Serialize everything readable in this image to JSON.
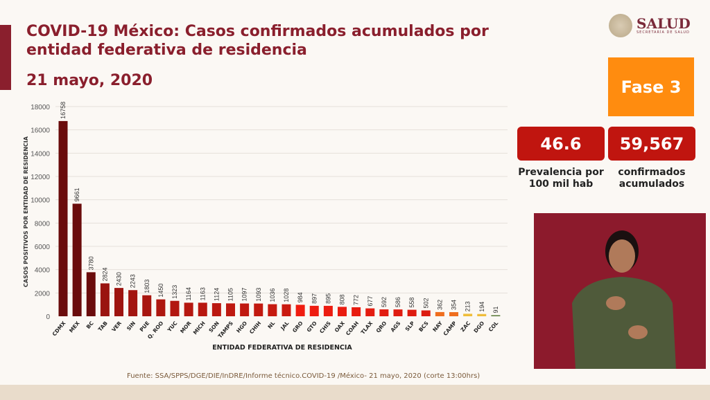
{
  "header": {
    "title": "COVID-19 México: Casos confirmados acumulados por entidad federativa de residencia",
    "date": "21 mayo, 2020"
  },
  "logo": {
    "name": "SALUD",
    "subtitle": "SECRETARÍA DE SALUD"
  },
  "stats": {
    "phase": "Fase 3",
    "prevalence_value": "46.6",
    "prevalence_label": "Prevalencia por 100 mil hab",
    "confirmed_value": "59,567",
    "confirmed_label": "confirmados acumulados"
  },
  "footer": {
    "source": "Fuente: SSA/SPPS/DGE/DIE/InDRE/Informe técnico.COVID-19 /México- 21 mayo, 2020 (corte 13:00hrs)"
  },
  "chart_data": {
    "type": "bar",
    "xlabel": "ENTIDAD FEDERATIVA DE RESIDENCIA",
    "ylabel": "CASOS POSITIVOS POR ENTIDAD DE RESIDENCIA",
    "ylim": [
      0,
      18000
    ],
    "yticks": [
      0,
      2000,
      4000,
      6000,
      8000,
      10000,
      12000,
      14000,
      16000,
      18000
    ],
    "grid": true,
    "categories": [
      "CDMX",
      "MEX",
      "BC",
      "TAB",
      "VER",
      "SIN",
      "PUE",
      "Q. ROO",
      "YUC",
      "MOR",
      "MICH",
      "SON",
      "TAMPS",
      "HGO",
      "CHIH",
      "NL",
      "JAL",
      "GRO",
      "GTO",
      "CHIS",
      "OAX",
      "COAH",
      "TLAX",
      "QRO",
      "AGS",
      "SLP",
      "BCS",
      "NAY",
      "CAMP",
      "ZAC",
      "DGO",
      "COL"
    ],
    "values": [
      16758,
      9661,
      3780,
      2824,
      2430,
      2243,
      1803,
      1450,
      1323,
      1164,
      1163,
      1124,
      1105,
      1097,
      1093,
      1036,
      1028,
      984,
      897,
      895,
      808,
      772,
      677,
      592,
      586,
      558,
      502,
      362,
      354,
      213,
      194,
      91
    ],
    "colors": [
      "#6a0c0c",
      "#6a0c0c",
      "#6a0c0c",
      "#9a1410",
      "#9e1410",
      "#a21510",
      "#a81610",
      "#ae1710",
      "#b21710",
      "#b61810",
      "#b81810",
      "#bb1810",
      "#be1910",
      "#c01910",
      "#c21a10",
      "#c61a10",
      "#ca1a10",
      "#f01c10",
      "#ee1c10",
      "#ec1c10",
      "#ea1c10",
      "#e81c10",
      "#e41c10",
      "#e21c10",
      "#e01c10",
      "#de1c10",
      "#dc1c10",
      "#ef6e1e",
      "#ef6e1e",
      "#efbd3a",
      "#efbd3a",
      "#5a7a3a"
    ]
  }
}
